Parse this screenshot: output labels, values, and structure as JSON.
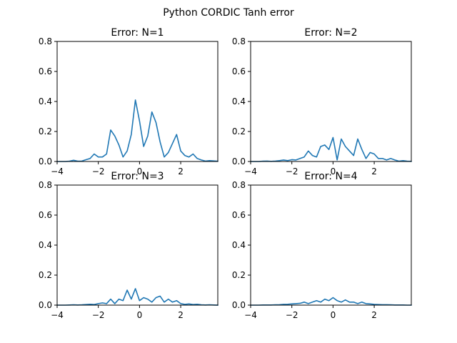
{
  "figure_title": "Python CORDIC Tanh error",
  "colors": {
    "series": "#1f77b4",
    "axes": "#000000",
    "background": "#ffffff"
  },
  "chart_data": [
    {
      "type": "line",
      "title": "Error: N=1",
      "xlabel": "",
      "ylabel": "",
      "xlim": [
        -4,
        3.8
      ],
      "ylim": [
        0,
        0.8
      ],
      "xticks": [
        -4,
        -2,
        0,
        2
      ],
      "xtick_labels": [
        "−4",
        "−2",
        "0",
        "2"
      ],
      "yticks": [
        0.0,
        0.2,
        0.4,
        0.6,
        0.8
      ],
      "ytick_labels": [
        "0.0",
        "0.2",
        "0.4",
        "0.6",
        "0.8"
      ],
      "grid": false,
      "x": [
        -4.0,
        -3.8,
        -3.6,
        -3.4,
        -3.2,
        -3.0,
        -2.8,
        -2.6,
        -2.4,
        -2.2,
        -2.0,
        -1.8,
        -1.6,
        -1.4,
        -1.2,
        -1.0,
        -0.8,
        -0.6,
        -0.4,
        -0.2,
        0.0,
        0.2,
        0.4,
        0.6,
        0.8,
        1.0,
        1.2,
        1.4,
        1.6,
        1.8,
        2.0,
        2.2,
        2.4,
        2.6,
        2.8,
        3.0,
        3.2,
        3.4,
        3.6,
        3.8
      ],
      "y": [
        0.0,
        0.0,
        0.0,
        0.002,
        0.008,
        0.002,
        0.003,
        0.012,
        0.02,
        0.05,
        0.03,
        0.03,
        0.05,
        0.21,
        0.17,
        0.11,
        0.03,
        0.07,
        0.18,
        0.41,
        0.27,
        0.1,
        0.17,
        0.33,
        0.26,
        0.13,
        0.03,
        0.06,
        0.12,
        0.18,
        0.07,
        0.04,
        0.03,
        0.05,
        0.02,
        0.01,
        0.003,
        0.006,
        0.004,
        0.002
      ]
    },
    {
      "type": "line",
      "title": "Error: N=2",
      "xlabel": "",
      "ylabel": "",
      "xlim": [
        -4,
        3.8
      ],
      "ylim": [
        0,
        0.8
      ],
      "xticks": [
        -4,
        -2,
        0,
        2
      ],
      "xtick_labels": [
        "−4",
        "−2",
        "0",
        "2"
      ],
      "yticks": [
        0.0,
        0.2,
        0.4,
        0.6,
        0.8
      ],
      "ytick_labels": [
        "0.0",
        "0.2",
        "0.4",
        "0.6",
        "0.8"
      ],
      "grid": false,
      "x": [
        -4.0,
        -3.8,
        -3.6,
        -3.4,
        -3.2,
        -3.0,
        -2.8,
        -2.6,
        -2.4,
        -2.2,
        -2.0,
        -1.8,
        -1.6,
        -1.4,
        -1.2,
        -1.0,
        -0.8,
        -0.6,
        -0.4,
        -0.2,
        0.0,
        0.2,
        0.4,
        0.6,
        0.8,
        1.0,
        1.2,
        1.4,
        1.6,
        1.8,
        2.0,
        2.2,
        2.4,
        2.6,
        2.8,
        3.0,
        3.2,
        3.4,
        3.6,
        3.8
      ],
      "y": [
        0.0,
        0.0,
        0.0,
        0.002,
        0.003,
        0.001,
        0.003,
        0.006,
        0.01,
        0.006,
        0.012,
        0.01,
        0.02,
        0.03,
        0.07,
        0.04,
        0.03,
        0.1,
        0.11,
        0.08,
        0.16,
        0.01,
        0.15,
        0.1,
        0.07,
        0.04,
        0.15,
        0.08,
        0.02,
        0.06,
        0.05,
        0.02,
        0.02,
        0.01,
        0.02,
        0.01,
        0.002,
        0.006,
        0.002,
        0.001
      ]
    },
    {
      "type": "line",
      "title": "Error: N=3",
      "xlabel": "",
      "ylabel": "",
      "xlim": [
        -4,
        3.8
      ],
      "ylim": [
        0,
        0.8
      ],
      "xticks": [
        -4,
        -2,
        0,
        2
      ],
      "xtick_labels": [
        "−4",
        "−2",
        "0",
        "2"
      ],
      "yticks": [
        0.0,
        0.2,
        0.4,
        0.6,
        0.8
      ],
      "ytick_labels": [
        "0.0",
        "0.2",
        "0.4",
        "0.6",
        "0.8"
      ],
      "grid": false,
      "x": [
        -4.0,
        -3.8,
        -3.6,
        -3.4,
        -3.2,
        -3.0,
        -2.8,
        -2.6,
        -2.4,
        -2.2,
        -2.0,
        -1.8,
        -1.6,
        -1.4,
        -1.2,
        -1.0,
        -0.8,
        -0.6,
        -0.4,
        -0.2,
        0.0,
        0.2,
        0.4,
        0.6,
        0.8,
        1.0,
        1.2,
        1.4,
        1.6,
        1.8,
        2.0,
        2.2,
        2.4,
        2.6,
        2.8,
        3.0,
        3.2,
        3.4,
        3.6,
        3.8
      ],
      "y": [
        0.0,
        0.0,
        0.0,
        0.001,
        0.002,
        0.001,
        0.002,
        0.004,
        0.006,
        0.004,
        0.01,
        0.015,
        0.01,
        0.04,
        0.01,
        0.04,
        0.03,
        0.1,
        0.04,
        0.11,
        0.03,
        0.05,
        0.04,
        0.02,
        0.05,
        0.06,
        0.02,
        0.04,
        0.02,
        0.03,
        0.01,
        0.005,
        0.008,
        0.004,
        0.006,
        0.002,
        0.001,
        0.002,
        0.001,
        0.0
      ]
    },
    {
      "type": "line",
      "title": "Error: N=4",
      "xlabel": "",
      "ylabel": "",
      "xlim": [
        -4,
        3.8
      ],
      "ylim": [
        0,
        0.8
      ],
      "xticks": [
        -4,
        -2,
        0,
        2
      ],
      "xtick_labels": [
        "−4",
        "−2",
        "0",
        "2"
      ],
      "yticks": [
        0.0,
        0.2,
        0.4,
        0.6,
        0.8
      ],
      "ytick_labels": [
        "0.0",
        "0.2",
        "0.4",
        "0.6",
        "0.8"
      ],
      "grid": false,
      "x": [
        -4.0,
        -3.8,
        -3.6,
        -3.4,
        -3.2,
        -3.0,
        -2.8,
        -2.6,
        -2.4,
        -2.2,
        -2.0,
        -1.8,
        -1.6,
        -1.4,
        -1.2,
        -1.0,
        -0.8,
        -0.6,
        -0.4,
        -0.2,
        0.0,
        0.2,
        0.4,
        0.6,
        0.8,
        1.0,
        1.2,
        1.4,
        1.6,
        1.8,
        2.0,
        2.2,
        2.4,
        2.6,
        2.8,
        3.0,
        3.2,
        3.4,
        3.6,
        3.8
      ],
      "y": [
        0.0,
        0.0,
        0.0,
        0.001,
        0.001,
        0.001,
        0.002,
        0.003,
        0.005,
        0.006,
        0.008,
        0.01,
        0.012,
        0.02,
        0.01,
        0.02,
        0.03,
        0.02,
        0.04,
        0.03,
        0.05,
        0.03,
        0.02,
        0.035,
        0.02,
        0.02,
        0.01,
        0.02,
        0.01,
        0.008,
        0.005,
        0.004,
        0.003,
        0.003,
        0.002,
        0.001,
        0.001,
        0.001,
        0.0,
        0.0
      ]
    }
  ]
}
